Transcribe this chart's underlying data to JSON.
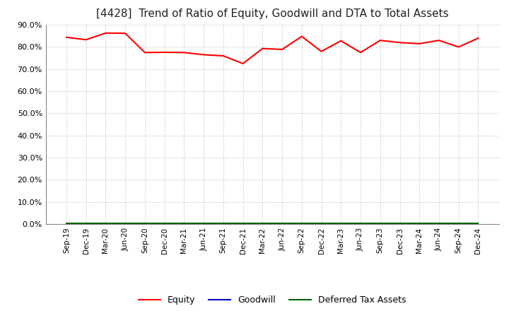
{
  "title": "[4428]  Trend of Ratio of Equity, Goodwill and DTA to Total Assets",
  "title_fontsize": 11,
  "ylim": [
    0.0,
    0.9
  ],
  "yticks": [
    0.0,
    0.1,
    0.2,
    0.3,
    0.4,
    0.5,
    0.6,
    0.7,
    0.8,
    0.9
  ],
  "background_color": "#ffffff",
  "plot_bg_color": "#ffffff",
  "x_labels": [
    "Sep-19",
    "Dec-19",
    "Mar-20",
    "Jun-20",
    "Sep-20",
    "Dec-20",
    "Mar-21",
    "Jun-21",
    "Sep-21",
    "Dec-21",
    "Mar-22",
    "Jun-22",
    "Sep-22",
    "Dec-22",
    "Mar-23",
    "Jun-23",
    "Sep-23",
    "Dec-23",
    "Mar-24",
    "Jun-24",
    "Sep-24",
    "Dec-24"
  ],
  "equity": [
    0.844,
    0.833,
    0.863,
    0.862,
    0.775,
    0.776,
    0.775,
    0.765,
    0.76,
    0.725,
    0.793,
    0.789,
    0.848,
    0.78,
    0.828,
    0.775,
    0.83,
    0.82,
    0.815,
    0.83,
    0.8,
    0.84
  ],
  "goodwill": [
    0.0,
    0.0,
    0.0,
    0.0,
    0.0,
    0.0,
    0.0,
    0.0,
    0.0,
    0.0,
    0.0,
    0.0,
    0.0,
    0.0,
    0.0,
    0.0,
    0.0,
    0.0,
    0.0,
    0.0,
    0.0,
    0.0
  ],
  "dta": [
    0.003,
    0.003,
    0.003,
    0.003,
    0.003,
    0.003,
    0.003,
    0.003,
    0.003,
    0.003,
    0.003,
    0.003,
    0.003,
    0.003,
    0.003,
    0.003,
    0.003,
    0.003,
    0.003,
    0.003,
    0.003,
    0.003
  ],
  "equity_color": "#ff0000",
  "goodwill_color": "#0000cc",
  "dta_color": "#006400",
  "line_width": 1.5,
  "grid_color": "#bbbbbb",
  "grid_style": ":",
  "legend_labels": [
    "Equity",
    "Goodwill",
    "Deferred Tax Assets"
  ]
}
